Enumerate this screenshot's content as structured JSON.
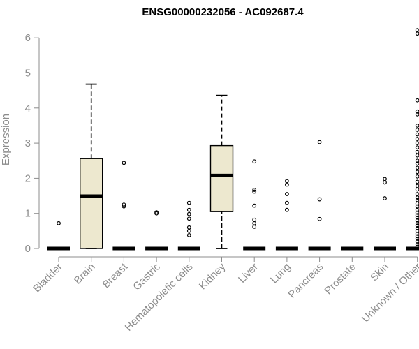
{
  "chart_data": {
    "type": "box",
    "title": "ENSG00000232056 - AC092687.4",
    "xlabel": "",
    "ylabel": "Expression",
    "ylim": [
      0,
      6.2
    ],
    "yticks": [
      "0",
      "1",
      "2",
      "3",
      "4",
      "5",
      "6"
    ],
    "categories": [
      "Bladder",
      "Brain",
      "Breast",
      "Gastric",
      "Hematopoietic cells",
      "Kidney",
      "Liver",
      "Lung",
      "Pancreas",
      "Prostate",
      "Skin",
      "Unknown / Other"
    ],
    "box_fill": "#ede8cf",
    "boxes": [
      {
        "min": 0,
        "q1": 0,
        "median": 0,
        "q3": 0,
        "max": 0,
        "outliers": [
          0.72
        ]
      },
      {
        "min": 0,
        "q1": 0,
        "median": 1.49,
        "q3": 2.56,
        "max": 4.68,
        "outliers": []
      },
      {
        "min": 0,
        "q1": 0,
        "median": 0,
        "q3": 0,
        "max": 0,
        "outliers": [
          2.44,
          1.25,
          1.2
        ]
      },
      {
        "min": 0,
        "q1": 0,
        "median": 0,
        "q3": 0,
        "max": 0,
        "outliers": [
          1.03,
          1.0
        ]
      },
      {
        "min": 0,
        "q1": 0,
        "median": 0,
        "q3": 0,
        "max": 0,
        "outliers": [
          1.3,
          1.1,
          0.98,
          0.85,
          0.6,
          0.5,
          0.38
        ]
      },
      {
        "min": 0,
        "q1": 1.05,
        "median": 2.08,
        "q3": 2.93,
        "max": 4.36,
        "outliers": []
      },
      {
        "min": 0,
        "q1": 0,
        "median": 0,
        "q3": 0,
        "max": 0,
        "outliers": [
          2.48,
          1.67,
          1.62,
          1.22,
          0.82,
          0.72,
          0.62
        ]
      },
      {
        "min": 0,
        "q1": 0,
        "median": 0,
        "q3": 0,
        "max": 0,
        "outliers": [
          1.92,
          1.82,
          1.55,
          1.3,
          1.1
        ]
      },
      {
        "min": 0,
        "q1": 0,
        "median": 0,
        "q3": 0,
        "max": 0,
        "outliers": [
          3.03,
          1.4,
          0.84
        ]
      },
      {
        "min": 0,
        "q1": 0,
        "median": 0,
        "q3": 0,
        "max": 0,
        "outliers": []
      },
      {
        "min": 0,
        "q1": 0,
        "median": 0,
        "q3": 0,
        "max": 0,
        "outliers": [
          1.98,
          1.88,
          1.43
        ]
      },
      {
        "min": 0,
        "q1": 0,
        "median": 0,
        "q3": 0,
        "max": 0,
        "outliers": [
          6.22,
          6.12,
          4.22,
          3.9,
          3.82,
          3.5,
          3.38,
          3.25,
          3.12,
          3.0,
          2.88,
          2.75,
          2.65,
          2.5,
          2.42,
          2.3,
          2.18,
          2.05,
          1.9,
          1.78,
          1.68,
          1.55,
          1.45,
          1.38,
          1.28,
          1.2,
          1.1,
          1.02,
          0.95,
          0.88,
          0.8,
          0.72,
          0.65,
          0.58,
          0.5,
          0.42,
          0.35,
          0.28,
          0.2,
          0.12,
          0.05
        ]
      }
    ]
  }
}
